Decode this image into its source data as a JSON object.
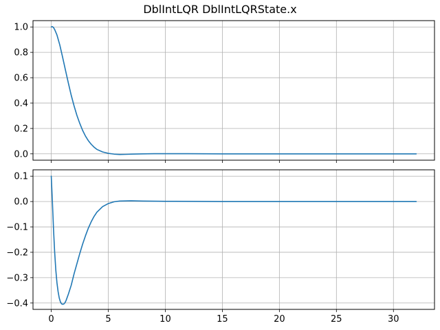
{
  "title": "DblIntLQR DblIntLQRState.x",
  "colors": {
    "series": "#1f77b4",
    "grid": "#b0b0b0",
    "axes": "#000000"
  },
  "chart_data": [
    {
      "type": "line",
      "grid": true,
      "xlim": [
        -1.6,
        33.6
      ],
      "ylim": [
        -0.05,
        1.05
      ],
      "xticks": [
        0,
        5,
        10,
        15,
        20,
        25,
        30
      ],
      "xtick_labels": [
        "",
        "",
        "",
        "",
        "",
        "",
        ""
      ],
      "yticks": [
        0.0,
        0.2,
        0.4,
        0.6,
        0.8,
        1.0
      ],
      "ytick_labels": [
        "0.0",
        "0.2",
        "0.4",
        "0.6",
        "0.8",
        "1.0"
      ],
      "series": [
        {
          "x": [
            0,
            0.1,
            0.2,
            0.3,
            0.5,
            0.75,
            1,
            1.25,
            1.5,
            1.75,
            2,
            2.25,
            2.5,
            2.75,
            3,
            3.25,
            3.5,
            3.75,
            4,
            4.5,
            5,
            5.5,
            6,
            6.5,
            7,
            8,
            9,
            10,
            12,
            15,
            20,
            25,
            30,
            32
          ],
          "y": [
            1.0,
            1.003,
            0.995,
            0.98,
            0.937,
            0.858,
            0.76,
            0.658,
            0.558,
            0.462,
            0.378,
            0.303,
            0.24,
            0.185,
            0.14,
            0.104,
            0.076,
            0.053,
            0.035,
            0.015,
            0.004,
            -0.002,
            -0.005,
            -0.004,
            -0.002,
            0.0,
            0.001,
            0.001,
            0.001,
            0.0,
            0.0,
            0.0,
            0.0,
            0.0
          ]
        }
      ]
    },
    {
      "type": "line",
      "grid": true,
      "xlim": [
        -1.6,
        33.6
      ],
      "ylim": [
        -0.425,
        0.125
      ],
      "xticks": [
        0,
        5,
        10,
        15,
        20,
        25,
        30
      ],
      "xtick_labels": [
        "0",
        "5",
        "10",
        "15",
        "20",
        "25",
        "30"
      ],
      "yticks": [
        -0.4,
        -0.3,
        -0.2,
        -0.1,
        0.0,
        0.1
      ],
      "ytick_labels": [
        "−0.4",
        "−0.3",
        "−0.2",
        "−0.1",
        "0.0",
        "0.1"
      ],
      "series": [
        {
          "x": [
            0,
            0.1,
            0.2,
            0.3,
            0.4,
            0.5,
            0.6,
            0.7,
            0.8,
            0.9,
            1.0,
            1.1,
            1.2,
            1.3,
            1.5,
            1.75,
            2,
            2.25,
            2.5,
            2.75,
            3,
            3.25,
            3.5,
            3.75,
            4,
            4.5,
            5,
            5.5,
            6,
            7,
            8,
            10,
            15,
            20,
            25,
            30,
            32
          ],
          "y": [
            0.1,
            0.0,
            -0.11,
            -0.2,
            -0.27,
            -0.32,
            -0.355,
            -0.38,
            -0.395,
            -0.403,
            -0.405,
            -0.404,
            -0.399,
            -0.39,
            -0.365,
            -0.33,
            -0.285,
            -0.245,
            -0.205,
            -0.168,
            -0.135,
            -0.105,
            -0.08,
            -0.059,
            -0.042,
            -0.02,
            -0.008,
            -0.001,
            0.002,
            0.003,
            0.002,
            0.001,
            0.0,
            0.0,
            0.0,
            0.0,
            0.0
          ]
        }
      ]
    }
  ]
}
